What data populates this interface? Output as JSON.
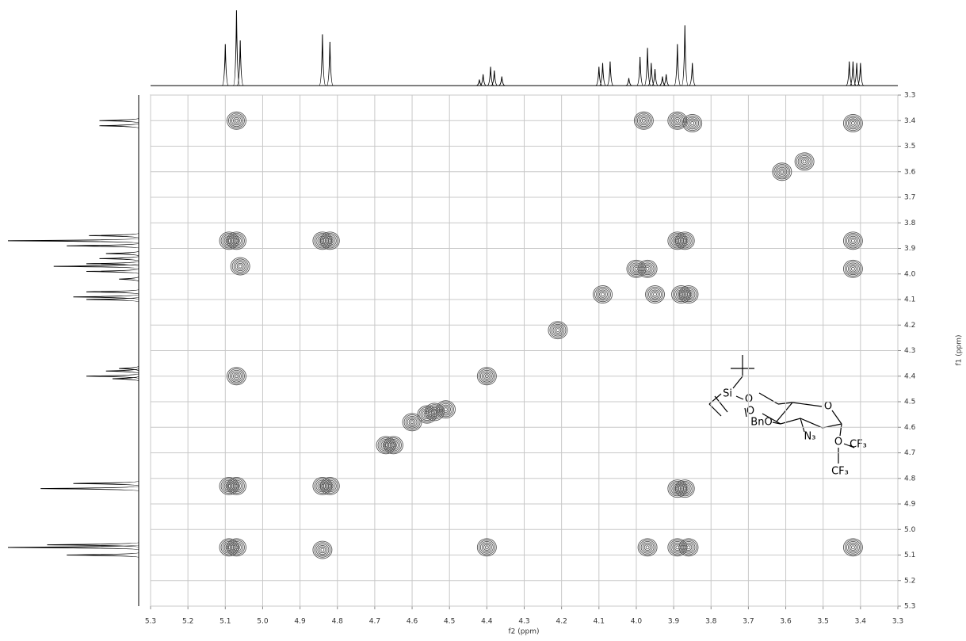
{
  "chart_data": {
    "type": "contour",
    "x_label": "f2 (ppm)",
    "y_label": "f1 (ppm)",
    "xlim": [
      5.3,
      3.3
    ],
    "ylim": [
      3.3,
      5.3
    ],
    "xticks": [
      5.3,
      5.2,
      5.1,
      {
        "value": 5,
        "label": "5.0"
      },
      4.9,
      4.8,
      4.7,
      4.6,
      4.5,
      4.4,
      4.3,
      4.2,
      4.1,
      {
        "value": 4,
        "label": "4.0"
      },
      3.9,
      3.8,
      3.7,
      3.6,
      3.5,
      3.4,
      3.3
    ],
    "yticks": [
      3.3,
      3.4,
      3.5,
      3.6,
      3.7,
      3.8,
      3.9,
      {
        "value": 4,
        "label": "4.0"
      },
      4.1,
      4.2,
      4.3,
      4.4,
      4.5,
      4.6,
      4.7,
      4.8,
      4.9,
      {
        "value": 5,
        "label": "5.0"
      },
      5.1,
      5.2,
      5.3
    ],
    "grid": true,
    "color": "#555555",
    "x": [
      3.42,
      3.61,
      3.55,
      3.87,
      3.89,
      3.97,
      4.0,
      4.09,
      4.21,
      4.4,
      4.54,
      4.56,
      4.6,
      4.51,
      4.67,
      4.65,
      4.84,
      4.82,
      5.07,
      5.09,
      5.07,
      3.98,
      3.89,
      3.85,
      5.09,
      5.07,
      4.84,
      4.82,
      3.42,
      3.42,
      5.06,
      3.88,
      3.95,
      3.86,
      5.07,
      5.09,
      5.07,
      4.84,
      4.4,
      3.89,
      3.86,
      3.97,
      3.42,
      3.87,
      3.89
    ],
    "y": [
      3.41,
      3.6,
      3.56,
      3.87,
      3.87,
      3.98,
      3.98,
      4.08,
      4.22,
      4.4,
      4.54,
      4.55,
      4.58,
      4.53,
      4.67,
      4.67,
      4.83,
      4.83,
      3.4,
      4.83,
      4.4,
      3.4,
      3.4,
      3.41,
      3.87,
      3.87,
      3.87,
      3.87,
      3.87,
      3.98,
      3.97,
      4.08,
      4.08,
      4.08,
      5.07,
      5.07,
      4.83,
      5.08,
      5.07,
      5.07,
      5.07,
      5.07,
      5.07,
      4.84,
      4.84
    ],
    "top_projection": {
      "positions": [
        5.1,
        5.07,
        5.06,
        4.84,
        4.82,
        4.42,
        4.41,
        4.39,
        4.38,
        4.36,
        4.1,
        4.09,
        4.07,
        4.02,
        3.99,
        3.97,
        3.96,
        3.95,
        3.93,
        3.92,
        3.89,
        3.87,
        3.85,
        3.43,
        3.42,
        3.41,
        3.4
      ],
      "heights": [
        55,
        100,
        60,
        68,
        58,
        8,
        15,
        25,
        20,
        12,
        25,
        30,
        32,
        10,
        38,
        50,
        30,
        22,
        12,
        15,
        55,
        80,
        30,
        32,
        32,
        30,
        30
      ]
    },
    "left_projection": {
      "positions": [
        3.4,
        3.42,
        3.85,
        3.87,
        3.89,
        3.92,
        3.94,
        3.96,
        3.97,
        3.99,
        4.02,
        4.07,
        4.09,
        4.1,
        4.37,
        4.38,
        4.4,
        4.41,
        4.82,
        4.84,
        5.06,
        5.07,
        5.1
      ],
      "heights": [
        30,
        30,
        38,
        100,
        55,
        25,
        30,
        40,
        65,
        40,
        15,
        40,
        50,
        40,
        15,
        25,
        40,
        20,
        50,
        75,
        70,
        100,
        55
      ]
    }
  },
  "structure": {
    "labels": [
      "Si",
      "O",
      "O",
      "BnO",
      "O",
      "N₃",
      "O",
      "CF₃",
      "CF₃"
    ]
  }
}
